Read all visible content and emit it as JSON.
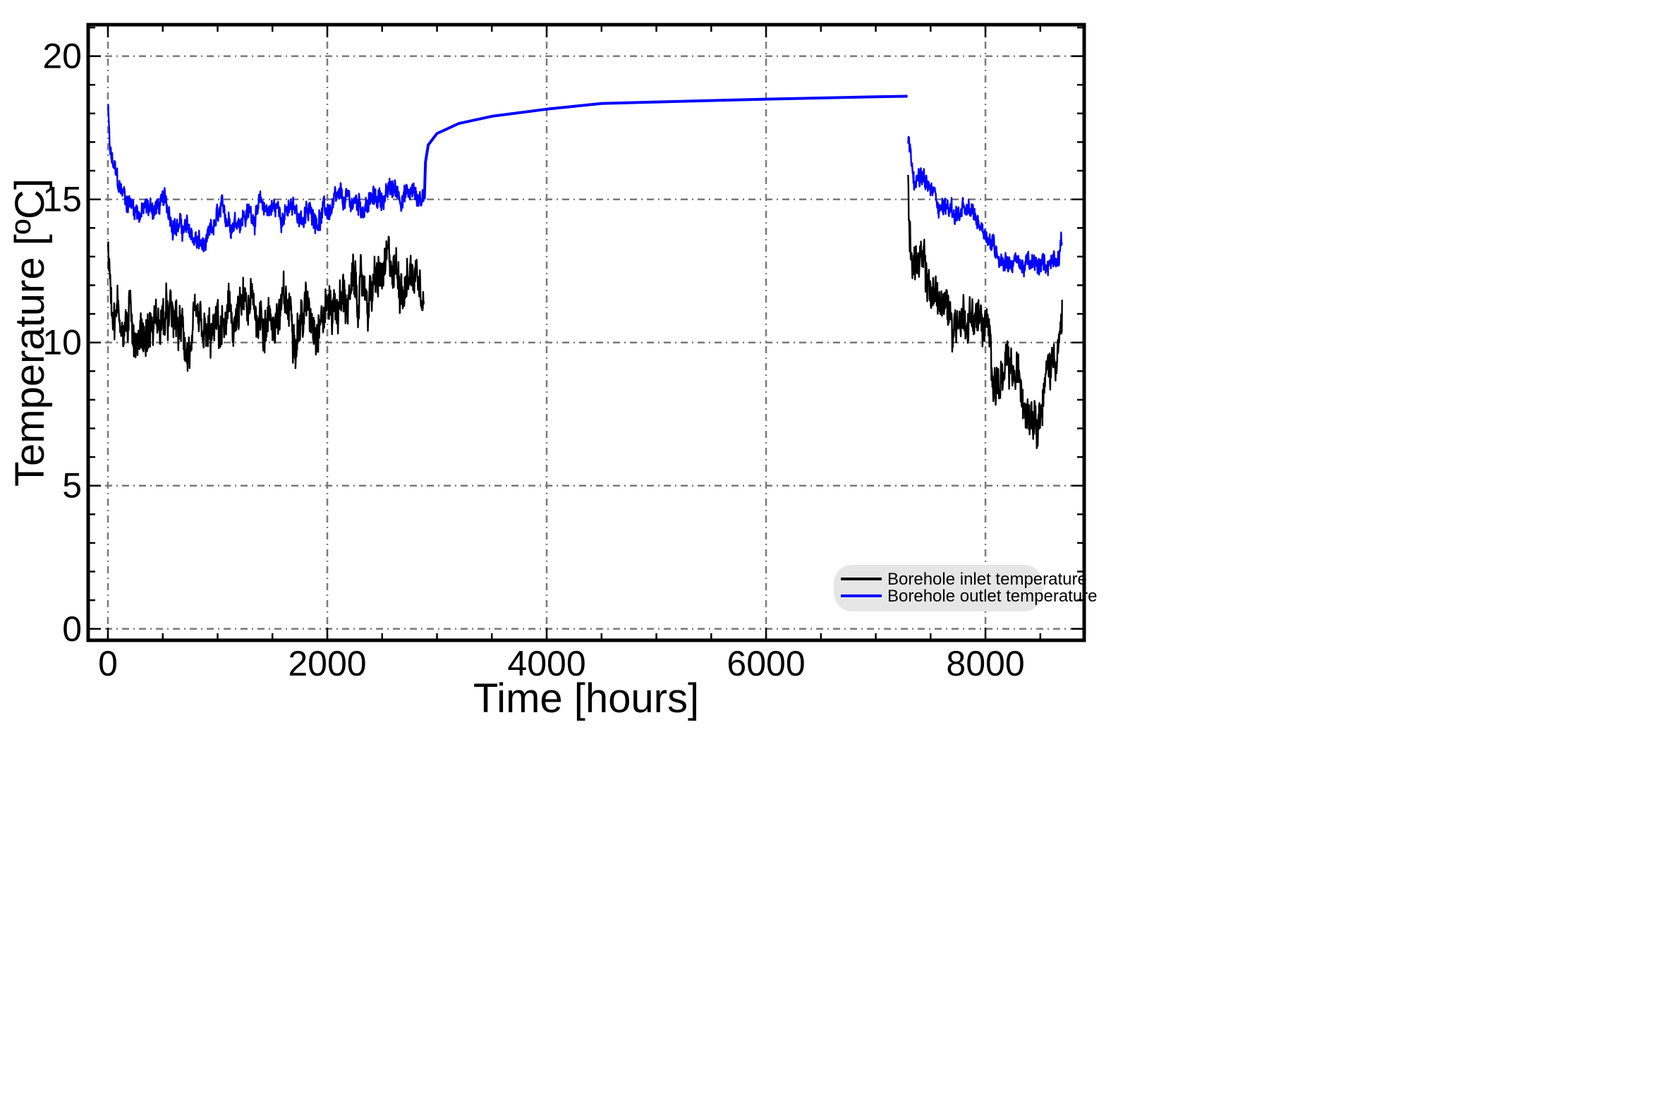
{
  "chart_data": {
    "type": "line",
    "title": "",
    "xlabel": "Time [hours]",
    "ylabel": "Temperature [ºC]",
    "xlim": [
      -180,
      8900
    ],
    "ylim": [
      -0.4,
      21.1
    ],
    "xticks": [
      0,
      2000,
      4000,
      6000,
      8000
    ],
    "yticks": [
      0,
      5,
      10,
      15,
      20
    ],
    "x_minor_step": 500,
    "y_minor_step": 1,
    "grid": true,
    "legend_position": "bottom-right",
    "series": [
      {
        "name": "Borehole inlet temperature",
        "color": "#000000",
        "noisy": true,
        "noise_amplitude": 1.3,
        "points": [
          [
            0,
            13.5
          ],
          [
            50,
            11.5
          ],
          [
            150,
            10.8
          ],
          [
            300,
            10.5
          ],
          [
            500,
            10.8
          ],
          [
            700,
            10.0
          ],
          [
            900,
            9.5
          ],
          [
            1000,
            10.2
          ],
          [
            1200,
            10.8
          ],
          [
            1400,
            11.0
          ],
          [
            1600,
            11.0
          ],
          [
            1800,
            11.2
          ],
          [
            2000,
            11.4
          ],
          [
            2200,
            11.6
          ],
          [
            2400,
            11.8
          ],
          [
            2600,
            12.4
          ],
          [
            2800,
            12.6
          ],
          [
            2880,
            12.8
          ]
        ]
      },
      {
        "name": "Borehole outlet temperature",
        "color": "#0000ff",
        "noisy": true,
        "noise_amplitude": 0.6,
        "points": [
          [
            0,
            18.2
          ],
          [
            20,
            16.5
          ],
          [
            100,
            15.3
          ],
          [
            300,
            14.6
          ],
          [
            500,
            14.8
          ],
          [
            700,
            13.9
          ],
          [
            900,
            13.2
          ],
          [
            1000,
            14.2
          ],
          [
            1200,
            14.5
          ],
          [
            1500,
            14.7
          ],
          [
            1800,
            14.4
          ],
          [
            2000,
            14.6
          ],
          [
            2200,
            14.8
          ],
          [
            2400,
            14.9
          ],
          [
            2600,
            15.3
          ],
          [
            2800,
            15.2
          ],
          [
            2880,
            15.0
          ]
        ]
      },
      {
        "name": "",
        "color": "#0000ff",
        "noisy": false,
        "points": [
          [
            2885,
            15.0
          ],
          [
            2895,
            16.3
          ],
          [
            2920,
            16.9
          ],
          [
            3000,
            17.3
          ],
          [
            3200,
            17.65
          ],
          [
            3500,
            17.9
          ],
          [
            4000,
            18.15
          ],
          [
            4500,
            18.35
          ],
          [
            5000,
            18.4
          ],
          [
            6000,
            18.5
          ],
          [
            7000,
            18.58
          ],
          [
            7290,
            18.6
          ]
        ]
      },
      {
        "name": "",
        "color": "#0000ff",
        "noisy": true,
        "noise_amplitude": 0.55,
        "points": [
          [
            7295,
            17.0
          ],
          [
            7350,
            16.0
          ],
          [
            7500,
            15.2
          ],
          [
            7700,
            14.6
          ],
          [
            7900,
            14.3
          ],
          [
            8000,
            14.0
          ],
          [
            8100,
            13.2
          ],
          [
            8300,
            12.8
          ],
          [
            8500,
            12.5
          ],
          [
            8600,
            12.9
          ],
          [
            8700,
            13.6
          ]
        ]
      },
      {
        "name": "",
        "color": "#000000",
        "noisy": true,
        "noise_amplitude": 1.2,
        "points": [
          [
            7295,
            15.6
          ],
          [
            7320,
            13.2
          ],
          [
            7500,
            11.8
          ],
          [
            7700,
            10.8
          ],
          [
            7900,
            11.2
          ],
          [
            8000,
            10.3
          ],
          [
            8100,
            8.8
          ],
          [
            8300,
            8.4
          ],
          [
            8500,
            8.2
          ],
          [
            8600,
            9.3
          ],
          [
            8700,
            10.8
          ]
        ]
      }
    ]
  }
}
